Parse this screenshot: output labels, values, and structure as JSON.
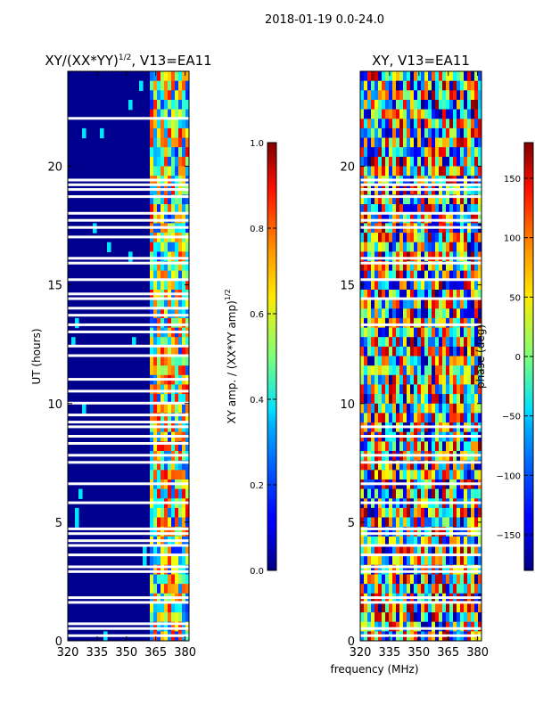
{
  "suptitle": "2018-01-19 0.0-24.0",
  "xlabel": "frequency (MHz)",
  "ylabel": "UT (hours)",
  "chart_data": [
    {
      "type": "heatmap",
      "title_main": "XY/(XX*YY)",
      "title_exp": "1/2",
      "title_rest": ", V13=EA11",
      "x_range": [
        320,
        382
      ],
      "y_range": [
        0,
        24
      ],
      "x_ticks": [
        320,
        335,
        350,
        365,
        380
      ],
      "y_ticks": [
        0,
        5,
        10,
        15,
        20
      ],
      "colorbar": {
        "label_main": "XY amp. / (XX*YY amp)",
        "label_exp": "1/2",
        "range": [
          0.0,
          1.0
        ],
        "ticks": [
          "0.0",
          "0.2",
          "0.4",
          "0.6",
          "0.8",
          "1.0"
        ],
        "tick_values": [
          0.0,
          0.2,
          0.4,
          0.6,
          0.8,
          1.0
        ]
      },
      "colormap": "jet",
      "blank_rows_hours": [
        0.2,
        0.5,
        0.7,
        1.6,
        1.8,
        2.9,
        3.1,
        3.6,
        4.0,
        4.2,
        4.5,
        4.7,
        5.8,
        6.6,
        7.5,
        7.8,
        8.3,
        8.6,
        9.0,
        9.2,
        9.5,
        10.0,
        10.5,
        11.0,
        12.0,
        12.4,
        13.0,
        13.3,
        13.7,
        14.0,
        14.4,
        14.6,
        15.2,
        15.9,
        16.1,
        17.0,
        17.4,
        17.7,
        18.0,
        18.7,
        19.0,
        19.2,
        19.4,
        22.0
      ]
    },
    {
      "type": "heatmap",
      "title_main": "XY, V13=EA11",
      "x_range": [
        320,
        382
      ],
      "y_range": [
        0,
        24
      ],
      "x_ticks": [
        320,
        335,
        350,
        365,
        380
      ],
      "y_ticks": [
        0,
        5,
        10,
        15,
        20
      ],
      "colorbar": {
        "label_main": "phase (deg)",
        "range": [
          -180,
          180
        ],
        "ticks": [
          "−150",
          "−100",
          "−50",
          "0",
          "50",
          "100",
          "150"
        ],
        "tick_values": [
          -150,
          -100,
          -50,
          0,
          50,
          100,
          150
        ]
      },
      "colormap": "jet",
      "blank_rows_hours": [
        0.2,
        0.5,
        1.6,
        1.8,
        2.9,
        3.1,
        3.6,
        4.0,
        4.5,
        4.7,
        5.8,
        6.6,
        7.5,
        7.8,
        8.6,
        9.0,
        13.3,
        14.4,
        15.2,
        15.9,
        16.1,
        17.4,
        17.7,
        18.0,
        18.7,
        19.0,
        19.2,
        19.4
      ]
    }
  ]
}
